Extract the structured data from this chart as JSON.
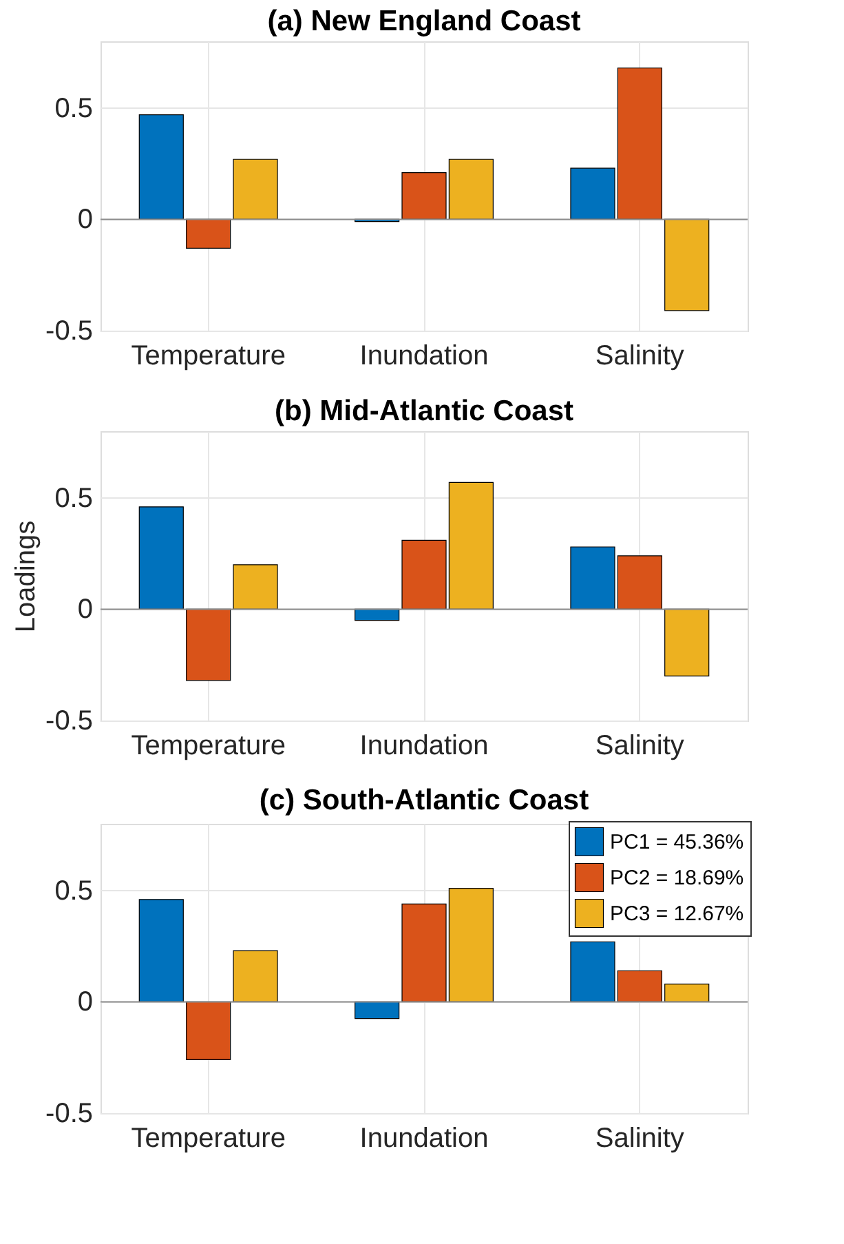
{
  "chart_data": [
    {
      "type": "bar",
      "title": "(a) New England Coast",
      "categories": [
        "Temperature",
        "Inundation",
        "Salinity"
      ],
      "series": [
        {
          "color": "#0072bd",
          "values": [
            0.47,
            -0.01,
            0.23
          ]
        },
        {
          "color": "#d95319",
          "values": [
            -0.13,
            0.21,
            0.68
          ]
        },
        {
          "color": "#edb120",
          "values": [
            0.27,
            0.27,
            -0.41
          ]
        }
      ],
      "ylim": [
        -0.5,
        0.8
      ],
      "yticks": [
        -0.5,
        0,
        0.5
      ],
      "grid": true,
      "ref_lines": [
        {
          "axis": "y",
          "value": 0,
          "label": null
        }
      ]
    },
    {
      "type": "bar",
      "title": "(b) Mid-Atlantic Coast",
      "ylabel": "Loadings",
      "categories": [
        "Temperature",
        "Inundation",
        "Salinity"
      ],
      "series": [
        {
          "color": "#0072bd",
          "values": [
            0.46,
            -0.05,
            0.28
          ]
        },
        {
          "color": "#d95319",
          "values": [
            -0.32,
            0.31,
            0.24
          ]
        },
        {
          "color": "#edb120",
          "values": [
            0.2,
            0.57,
            -0.3
          ]
        }
      ],
      "ylim": [
        -0.5,
        0.8
      ],
      "yticks": [
        -0.5,
        0,
        0.5
      ],
      "grid": true,
      "ref_lines": [
        {
          "axis": "y",
          "value": 0,
          "label": null
        }
      ]
    },
    {
      "type": "bar",
      "title": "(c) South-Atlantic Coast",
      "categories": [
        "Temperature",
        "Inundation",
        "Salinity"
      ],
      "series": [
        {
          "name": "PC1 = 45.36%",
          "color": "#0072bd",
          "values": [
            0.46,
            -0.075,
            0.27
          ]
        },
        {
          "name": "PC2 = 18.69%",
          "color": "#d95319",
          "values": [
            -0.26,
            0.44,
            0.14
          ]
        },
        {
          "name": "PC3 = 12.67%",
          "color": "#edb120",
          "values": [
            0.23,
            0.51,
            0.08
          ]
        }
      ],
      "ylim": [
        -0.5,
        0.8
      ],
      "yticks": [
        -0.5,
        0,
        0.5
      ],
      "grid": true,
      "legend": "top right",
      "ref_lines": [
        {
          "axis": "y",
          "value": 0,
          "label": null
        }
      ]
    }
  ]
}
